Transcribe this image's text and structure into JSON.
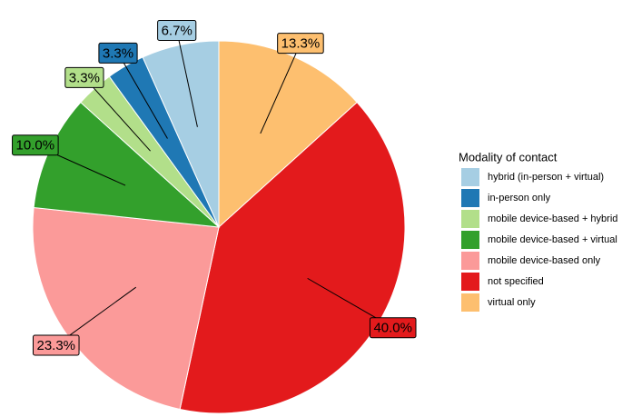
{
  "chart_data": {
    "type": "pie",
    "legend_title": "Modality of contact",
    "categories": [
      "hybrid (in-person + virtual)",
      "in-person only",
      "mobile device-based + hybrid",
      "mobile device-based + virtual",
      "mobile device-based only",
      "not specified",
      "virtual only"
    ],
    "values": [
      6.7,
      3.3,
      3.3,
      10.0,
      23.3,
      40.0,
      13.3
    ],
    "value_labels": [
      "6.7%",
      "3.3%",
      "3.3%",
      "10.0%",
      "23.3%",
      "40.0%",
      "13.3%"
    ],
    "colors": [
      "#a6cee3",
      "#1f78b4",
      "#b2df8a",
      "#33a02c",
      "#fb9a99",
      "#e31a1c",
      "#fdbf6f"
    ]
  }
}
